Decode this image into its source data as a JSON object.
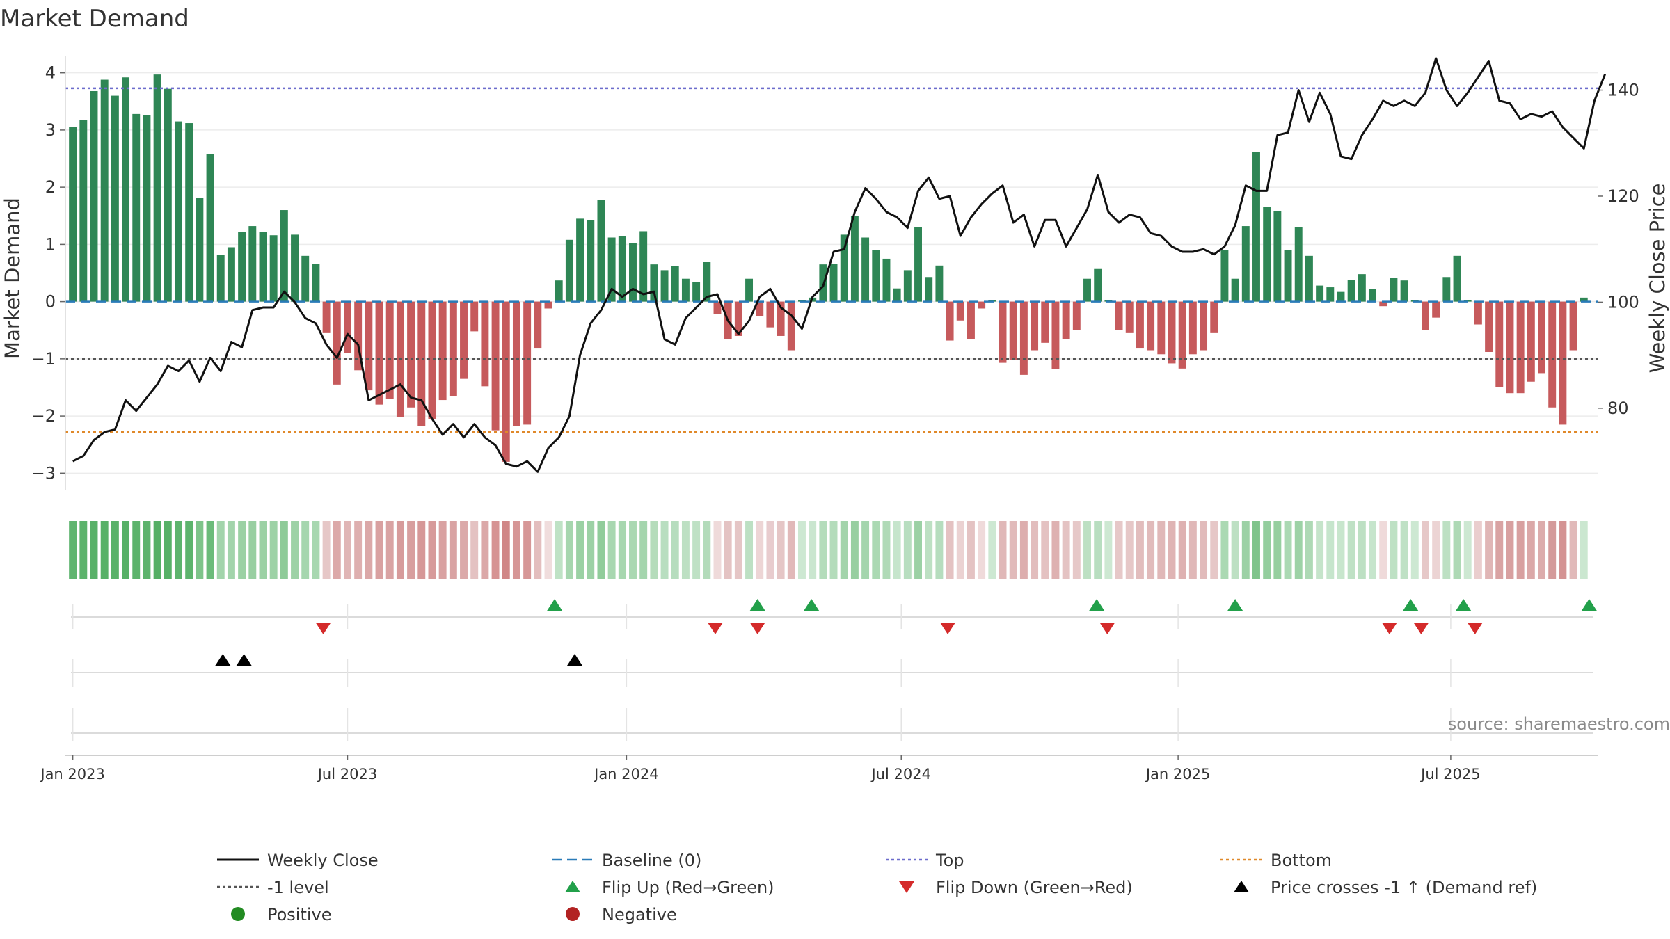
{
  "chart_data": {
    "type": "bar",
    "title": "Market Demand",
    "ylabel_left": "Market Demand",
    "ylabel_right": "Weekly Close Price",
    "source": "source: sharemaestro.com",
    "left_ylim": [
      -3.3,
      4.3
    ],
    "left_yticks": [
      -3,
      -2,
      -1,
      0,
      1,
      2,
      3,
      4
    ],
    "left_ytick_labels": [
      "−3",
      "−2",
      "−1",
      "0",
      "1",
      "2",
      "3",
      "4"
    ],
    "right_ylim": [
      64.5,
      146.5
    ],
    "right_yticks": [
      80,
      100,
      120,
      140
    ],
    "right_ytick_labels": [
      "80",
      "100",
      "120",
      "140"
    ],
    "x_start_week": -0.7,
    "x_weeks_total": 145,
    "date_ticks": [
      {
        "label": "Jan 2023",
        "week": 0
      },
      {
        "label": "Jul 2023",
        "week": 26
      },
      {
        "label": "Jan 2024",
        "week": 52.4
      },
      {
        "label": "Jul 2024",
        "week": 78.4
      },
      {
        "label": "Jan 2025",
        "week": 104.6
      },
      {
        "label": "Jul 2025",
        "week": 130.4
      }
    ],
    "top_level": 3.73,
    "bottom_level": -2.28,
    "minus1_level": -1,
    "baseline_level": 0,
    "demand": [
      3.05,
      3.17,
      3.68,
      3.88,
      3.6,
      3.92,
      3.28,
      3.26,
      3.97,
      3.72,
      3.15,
      3.12,
      1.81,
      2.58,
      0.82,
      0.95,
      1.22,
      1.32,
      1.22,
      1.16,
      1.6,
      1.17,
      0.8,
      0.66,
      -0.55,
      -1.45,
      -0.9,
      -1.2,
      -1.55,
      -1.8,
      -1.7,
      -2.02,
      -1.85,
      -2.18,
      -2.05,
      -1.72,
      -1.65,
      -1.35,
      -0.52,
      -1.48,
      -2.25,
      -2.8,
      -2.18,
      -2.15,
      -0.82,
      -0.12,
      0.37,
      1.08,
      1.45,
      1.42,
      1.78,
      1.12,
      1.14,
      1.02,
      1.23,
      0.65,
      0.55,
      0.62,
      0.4,
      0.34,
      0.7,
      -0.22,
      -0.65,
      -0.6,
      0.4,
      -0.25,
      -0.45,
      -0.6,
      -0.85,
      0.03,
      0.07,
      0.65,
      0.66,
      1.17,
      1.5,
      1.12,
      0.9,
      0.75,
      0.23,
      0.55,
      1.3,
      0.43,
      0.63,
      -0.68,
      -0.33,
      -0.65,
      -0.12,
      0.03,
      -1.07,
      -1.02,
      -1.28,
      -0.85,
      -0.72,
      -1.18,
      -0.65,
      -0.5,
      0.4,
      0.57,
      0.02,
      -0.5,
      -0.55,
      -0.82,
      -0.85,
      -0.92,
      -1.08,
      -1.17,
      -0.92,
      -0.85,
      -0.55,
      0.9,
      0.4,
      1.32,
      2.62,
      1.66,
      1.58,
      0.9,
      1.3,
      0.8,
      0.28,
      0.25,
      0.17,
      0.38,
      0.48,
      0.22,
      -0.08,
      0.42,
      0.37,
      0.03,
      -0.5,
      -0.28,
      0.43,
      0.8,
      0.02,
      -0.4,
      -0.88,
      -1.5,
      -1.6,
      -1.6,
      -1.4,
      -1.25,
      -1.85,
      -2.15,
      -0.85,
      0.07
    ],
    "weekly_close": [
      70,
      71,
      74,
      75.5,
      76,
      81.5,
      79.5,
      82,
      84.5,
      88,
      87,
      89,
      85,
      89.5,
      87,
      92.5,
      91.5,
      98.5,
      99,
      99,
      102,
      100,
      97,
      96,
      92,
      89.5,
      94,
      92,
      81.5,
      82.5,
      83.5,
      84.5,
      82,
      81.5,
      78,
      75,
      77,
      74.5,
      77,
      74.5,
      73,
      69.5,
      69,
      70,
      68,
      72.5,
      74.5,
      78.5,
      90,
      96,
      98.5,
      102.5,
      101,
      102.5,
      101.5,
      102,
      93,
      92,
      97,
      99,
      101,
      101.5,
      96.5,
      94,
      96.5,
      101,
      102.5,
      99,
      97.5,
      95,
      101,
      103,
      109.5,
      110,
      117,
      121.5,
      119.5,
      117,
      116,
      114,
      121,
      123.5,
      119.5,
      120,
      112.5,
      116,
      118.5,
      120.5,
      122,
      115,
      116.5,
      110.5,
      115.5,
      115.5,
      110.5,
      114,
      117.5,
      124,
      117,
      115,
      116.5,
      116,
      113,
      112.5,
      110.5,
      109.5,
      109.5,
      110,
      109,
      110.5,
      114.5,
      122,
      121,
      121,
      131.5,
      132,
      140,
      134,
      139.5,
      135.5,
      127.5,
      127,
      131.5,
      134.5,
      138,
      137,
      138,
      137,
      139.5,
      146,
      140,
      137,
      139.5,
      142.5,
      145.5,
      138,
      137.5,
      134.5,
      135.5,
      135,
      136,
      133,
      131,
      129,
      138,
      143
    ],
    "heat_strip_colors": [
      "#5fb56f",
      "#5cb36c",
      "#58b168",
      "#57b167",
      "#59b269",
      "#56b066",
      "#5cb36c",
      "#5cb36c",
      "#55af65",
      "#57b167",
      "#5db46d",
      "#5db46d",
      "#7ec48a",
      "#6bbb7a",
      "#a2d4ab",
      "#a2d4ab",
      "#9bd1a4",
      "#98cfa1",
      "#9bd1a4",
      "#9dd2a6",
      "#8ecb98",
      "#9dd2a6",
      "#a5d6ae",
      "#a8d7b0",
      "#e6c7c7",
      "#dca9a9",
      "#e0b6b6",
      "#deafaf",
      "#dba8a8",
      "#d9a1a1",
      "#d9a3a3",
      "#d79b9b",
      "#d89f9f",
      "#d69898",
      "#d79a9a",
      "#d9a1a1",
      "#d9a3a3",
      "#dba9a9",
      "#e4c2c2",
      "#dba8a8",
      "#d69393",
      "#d08787",
      "#d69696",
      "#d69696",
      "#e3bebe",
      "#f0dddd",
      "#bfe2c5",
      "#a6d6ae",
      "#9bd1a4",
      "#9cd1a5",
      "#90cc9a",
      "#a8d7b0",
      "#a7d7af",
      "#aad8b2",
      "#a4d5ad",
      "#b5dcbb",
      "#b8dec0",
      "#b6ddbe",
      "#bde0c3",
      "#bfe1c5",
      "#b3dbba",
      "#efdada",
      "#e4c3c3",
      "#e5c6c6",
      "#bde0c3",
      "#edd5d5",
      "#e8ccce",
      "#e5c6c6",
      "#e1b9b9",
      "#cde8d2",
      "#cae6cf",
      "#b4dcbb",
      "#b4dcbb",
      "#a3d4ab",
      "#98cfa1",
      "#a4d5ad",
      "#abd9b3",
      "#b0dab7",
      "#c6e5cc",
      "#b8dec0",
      "#9cd1a5",
      "#bde0c3",
      "#b6ddbe",
      "#e4c2c2",
      "#ebd2d2",
      "#e4c3c3",
      "#efdada",
      "#cde8d2",
      "#e0b8b8",
      "#e1baba",
      "#ddaeae",
      "#e2bdbd",
      "#e4c2c2",
      "#deb1b1",
      "#e4c3c3",
      "#e6c8c8",
      "#bde0c3",
      "#b8dec0",
      "#cde8d2",
      "#e6c8c8",
      "#e6c7c7",
      "#e2bdbd",
      "#e1bbbb",
      "#e0b8b8",
      "#dfb4b4",
      "#deb1b1",
      "#e0b8b8",
      "#e1bbbb",
      "#e6c7c7",
      "#abd9b3",
      "#bde0c3",
      "#9cd1a5",
      "#7fc48b",
      "#94ce9e",
      "#96cf9f",
      "#abd9b3",
      "#9dd2a6",
      "#aed9b5",
      "#c5e4ca",
      "#c6e5cc",
      "#c8e6cd",
      "#bfe1c5",
      "#bde0c3",
      "#c6e5cc",
      "#efdada",
      "#bee1c4",
      "#bfe1c5",
      "#cde8d2",
      "#e6c8c8",
      "#ecd4d4",
      "#bde0c3",
      "#aed9b5",
      "#cde8d2",
      "#eacece",
      "#e0b6b6",
      "#d9a3a3",
      "#d8a0a0",
      "#d8a0a0",
      "#dba8a8",
      "#dcacac",
      "#d49a9a",
      "#d49393",
      "#e1b9b9",
      "#cbe7d0"
    ],
    "flip_up_weeks": [
      45.6,
      64.8,
      69.9,
      96.9,
      110,
      126.6,
      131.6,
      143.5
    ],
    "flip_down_weeks": [
      23.7,
      60.8,
      64.8,
      82.8,
      97.9,
      124.6,
      127.6,
      132.7
    ],
    "price_cross_weeks": [
      14.2,
      16.2,
      47.5
    ],
    "legend": [
      {
        "label": "Weekly Close",
        "key": "weekly-close"
      },
      {
        "label": "Baseline (0)",
        "key": "baseline"
      },
      {
        "label": "Top",
        "key": "top"
      },
      {
        "label": "Bottom",
        "key": "bottom"
      },
      {
        "label": "-1 level",
        "key": "minus1"
      },
      {
        "label": "Flip Up (Red→Green)",
        "key": "flip-up"
      },
      {
        "label": "Flip Down (Green→Red)",
        "key": "flip-down"
      },
      {
        "label": "Price crosses -1 ↑ (Demand ref)",
        "key": "price-cross"
      },
      {
        "label": "Positive",
        "key": "positive"
      },
      {
        "label": "Negative",
        "key": "negative"
      }
    ]
  },
  "colors": {
    "positive_bar": "#2e8655",
    "negative_bar": "#c65a5c",
    "weekly_close": "#111111",
    "baseline": "#2a7bb8",
    "top": "#6c6ccc",
    "bottom": "#e0892a",
    "minus1": "#555555",
    "flip_up": "#22a04a",
    "flip_down": "#d42a2a",
    "price_cross": "#000000",
    "positive_dot": "#228b22",
    "negative_dot": "#b22222"
  }
}
